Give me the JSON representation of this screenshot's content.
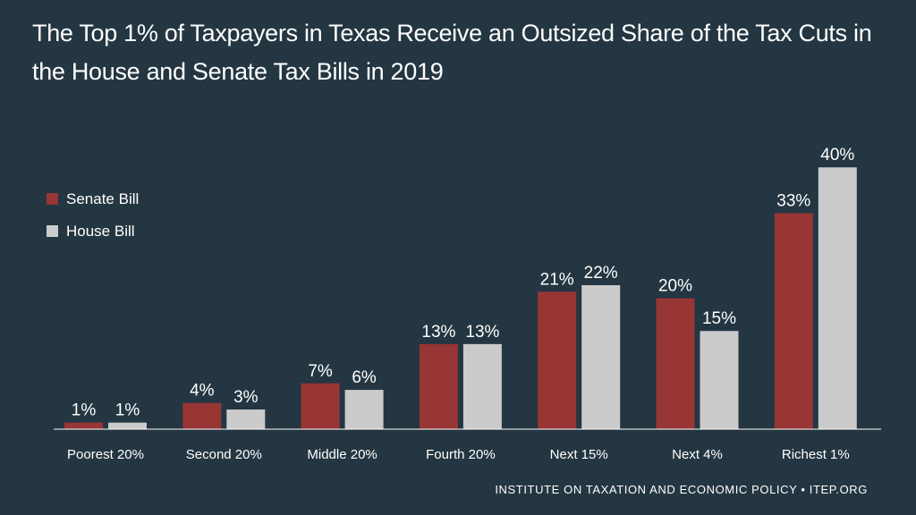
{
  "chart_data": {
    "type": "bar",
    "title": "The Top 1% of Taxpayers in Texas Receive an Outsized Share of the Tax Cuts in the House and Senate Tax Bills in 2019",
    "categories": [
      "Poorest 20%",
      "Second 20%",
      "Middle 20%",
      "Fourth 20%",
      "Next 15%",
      "Next 4%",
      "Richest 1%"
    ],
    "series": [
      {
        "name": "Senate Bill",
        "color": "#983535",
        "values": [
          1,
          4,
          7,
          13,
          21,
          20,
          33
        ],
        "labels": [
          "1%",
          "4%",
          "7%",
          "13%",
          "21%",
          "20%",
          "33%"
        ]
      },
      {
        "name": "House Bill",
        "color": "#cbcbcb",
        "values": [
          1,
          3,
          6,
          13,
          22,
          15,
          40
        ],
        "labels": [
          "1%",
          "3%",
          "6%",
          "13%",
          "22%",
          "15%",
          "40%"
        ]
      }
    ],
    "xlabel": "",
    "ylabel": "",
    "ylim": [
      0,
      40
    ],
    "grid": false,
    "legend_position": "top-left"
  },
  "source": "INSTITUTE ON TAXATION AND ECONOMIC POLICY • ITEP.ORG"
}
